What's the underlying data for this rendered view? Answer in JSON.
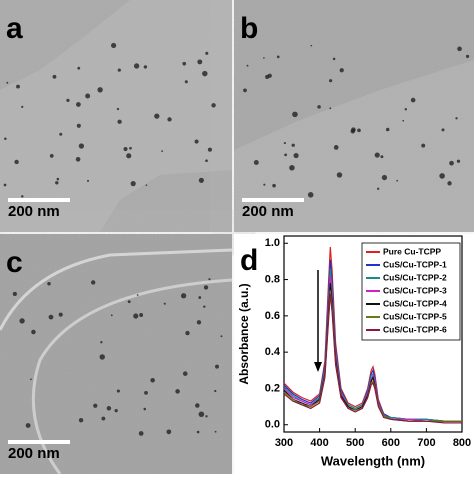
{
  "panels": [
    {
      "label": "a",
      "scale_bar": "200 nm"
    },
    {
      "label": "b",
      "scale_bar": "200 nm"
    },
    {
      "label": "c",
      "scale_bar": "200 nm"
    }
  ],
  "chart_data": {
    "type": "line",
    "panel_label": "d",
    "x_label": "Wavelength (nm)",
    "y_label": "Absorbance (a.u.)",
    "xlim": [
      300,
      800
    ],
    "ylim": [
      -0.04,
      1.04
    ],
    "xticks": [
      300,
      400,
      500,
      600,
      700,
      800
    ],
    "yticks": [
      {
        "value": 0,
        "label": "0.0"
      },
      {
        "value": 0.2,
        "label": "0.2"
      },
      {
        "value": 0.4,
        "label": "0.4"
      },
      {
        "value": 0.6,
        "label": "0.6"
      },
      {
        "value": 0.8,
        "label": "0.8"
      },
      {
        "value": 1,
        "label": "1.0"
      }
    ],
    "legend": "upper right",
    "x": [
      300,
      325,
      350,
      375,
      400,
      415,
      425,
      430,
      435,
      445,
      460,
      480,
      500,
      520,
      535,
      545,
      550,
      555,
      565,
      580,
      600,
      650,
      700,
      750,
      800
    ],
    "series": [
      {
        "name": "Pure Cu-TCPP",
        "color": "#e0201e",
        "values": [
          0.23,
          0.18,
          0.15,
          0.13,
          0.17,
          0.35,
          0.78,
          0.98,
          0.85,
          0.45,
          0.2,
          0.12,
          0.1,
          0.12,
          0.2,
          0.3,
          0.32,
          0.28,
          0.14,
          0.06,
          0.04,
          0.03,
          0.03,
          0.02,
          0.02
        ]
      },
      {
        "name": "CuS/Cu-TCPP-1",
        "color": "#2233cc",
        "values": [
          0.22,
          0.17,
          0.14,
          0.12,
          0.16,
          0.33,
          0.73,
          0.91,
          0.79,
          0.42,
          0.19,
          0.11,
          0.09,
          0.11,
          0.19,
          0.28,
          0.3,
          0.26,
          0.13,
          0.06,
          0.04,
          0.03,
          0.03,
          0.02,
          0.02
        ]
      },
      {
        "name": "CuS/Cu-TCPP-2",
        "color": "#1a8a8a",
        "values": [
          0.21,
          0.16,
          0.13,
          0.11,
          0.15,
          0.31,
          0.69,
          0.86,
          0.75,
          0.4,
          0.18,
          0.11,
          0.09,
          0.11,
          0.18,
          0.27,
          0.28,
          0.25,
          0.12,
          0.05,
          0.04,
          0.03,
          0.03,
          0.02,
          0.02
        ]
      },
      {
        "name": "CuS/Cu-TCPP-3",
        "color": "#d020c8",
        "values": [
          0.2,
          0.15,
          0.13,
          0.11,
          0.14,
          0.29,
          0.66,
          0.82,
          0.71,
          0.38,
          0.17,
          0.1,
          0.08,
          0.1,
          0.17,
          0.25,
          0.27,
          0.24,
          0.12,
          0.05,
          0.03,
          0.03,
          0.02,
          0.02,
          0.02
        ]
      },
      {
        "name": "CuS/Cu-TCPP-4",
        "color": "#111111",
        "values": [
          0.19,
          0.14,
          0.12,
          0.1,
          0.14,
          0.28,
          0.62,
          0.78,
          0.68,
          0.36,
          0.16,
          0.1,
          0.08,
          0.1,
          0.16,
          0.24,
          0.26,
          0.22,
          0.11,
          0.05,
          0.03,
          0.02,
          0.02,
          0.02,
          0.02
        ]
      },
      {
        "name": "CuS/Cu-TCPP-5",
        "color": "#6b7a10",
        "values": [
          0.18,
          0.14,
          0.11,
          0.1,
          0.13,
          0.27,
          0.59,
          0.74,
          0.65,
          0.34,
          0.15,
          0.09,
          0.08,
          0.09,
          0.15,
          0.23,
          0.24,
          0.21,
          0.11,
          0.05,
          0.03,
          0.02,
          0.02,
          0.02,
          0.02
        ]
      },
      {
        "name": "CuS/Cu-TCPP-6",
        "color": "#8a1a3a",
        "values": [
          0.17,
          0.13,
          0.11,
          0.09,
          0.12,
          0.26,
          0.57,
          0.72,
          0.62,
          0.33,
          0.15,
          0.09,
          0.07,
          0.09,
          0.15,
          0.22,
          0.23,
          0.2,
          0.1,
          0.04,
          0.03,
          0.02,
          0.02,
          0.01,
          0.01
        ]
      }
    ]
  }
}
